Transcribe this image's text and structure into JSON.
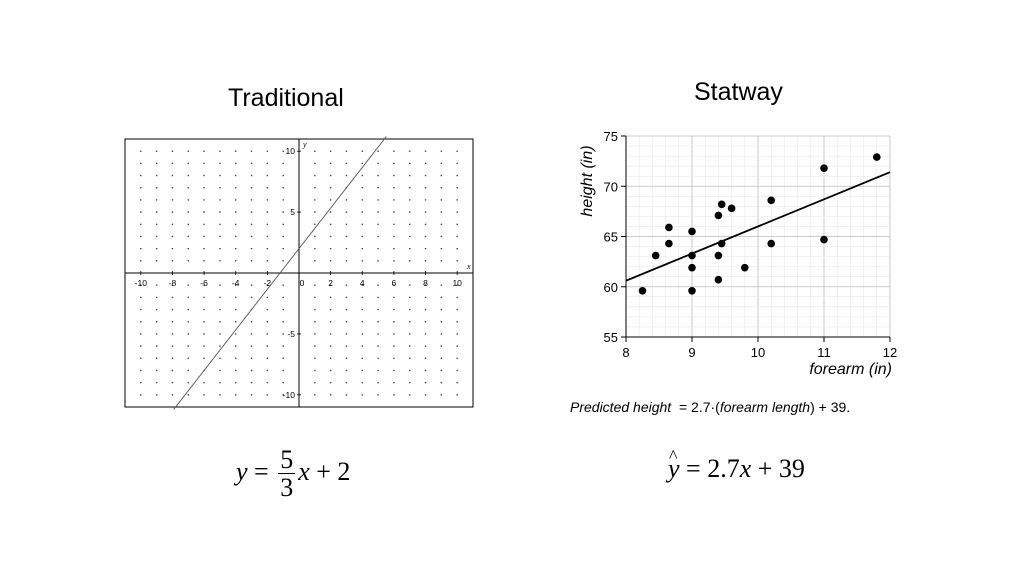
{
  "left": {
    "title": "Traditional",
    "equation": {
      "y": "y",
      "equals": "=",
      "num": "5",
      "den": "3",
      "x": "x",
      "rest": "+ 2"
    }
  },
  "right": {
    "title": "Statway",
    "caption": {
      "p1": "Predicted height",
      "p2": "  = 2.7·(",
      "p3": "forearm length",
      "p4": ") + 39."
    },
    "equation": {
      "yhat": "y",
      "hat": "^",
      "rest1": "= 2.7",
      "x": "x",
      "rest2": "+ 39"
    }
  },
  "chart_data": [
    {
      "type": "line",
      "title": "",
      "xlabel": "x",
      "ylabel": "y",
      "xlim": [
        -11,
        11
      ],
      "ylim": [
        -11,
        11
      ],
      "grid": "dot grid",
      "x_ticks": [
        -10,
        -8,
        -6,
        -4,
        -2,
        0,
        2,
        4,
        6,
        8,
        10
      ],
      "x_tick_labels": [
        "-10",
        "-8",
        "-6",
        "-4",
        "-2",
        "0",
        "2",
        "4",
        "6",
        "8",
        "10"
      ],
      "y_ticks": [
        10,
        5,
        -5,
        -10
      ],
      "y_tick_labels": [
        "10",
        "5",
        "-5",
        "-10"
      ],
      "series": [
        {
          "slope": 1.6667,
          "intercept": 2
        }
      ]
    },
    {
      "type": "scatter",
      "title": "",
      "xlabel": "forearm (in)",
      "ylabel": "height (in)",
      "xlim": [
        8,
        12
      ],
      "ylim": [
        55,
        75
      ],
      "grid": true,
      "x_ticks": [
        8,
        9,
        10,
        11,
        12
      ],
      "y_ticks": [
        55,
        60,
        65,
        70,
        75
      ],
      "points": [
        {
          "x": 8.25,
          "y": 59.6
        },
        {
          "x": 8.45,
          "y": 63.1
        },
        {
          "x": 8.65,
          "y": 64.3
        },
        {
          "x": 8.65,
          "y": 65.9
        },
        {
          "x": 9.0,
          "y": 59.6
        },
        {
          "x": 9.0,
          "y": 61.9
        },
        {
          "x": 9.0,
          "y": 63.1
        },
        {
          "x": 9.0,
          "y": 65.5
        },
        {
          "x": 9.4,
          "y": 60.7
        },
        {
          "x": 9.4,
          "y": 63.1
        },
        {
          "x": 9.4,
          "y": 67.1
        },
        {
          "x": 9.45,
          "y": 64.3
        },
        {
          "x": 9.45,
          "y": 68.2
        },
        {
          "x": 9.6,
          "y": 67.8
        },
        {
          "x": 9.8,
          "y": 61.9
        },
        {
          "x": 10.2,
          "y": 64.3
        },
        {
          "x": 10.2,
          "y": 68.6
        },
        {
          "x": 11.0,
          "y": 64.7
        },
        {
          "x": 11.0,
          "y": 71.8
        },
        {
          "x": 11.8,
          "y": 72.9
        }
      ],
      "fit_line": {
        "slope": 2.7,
        "intercept": 39
      }
    }
  ]
}
